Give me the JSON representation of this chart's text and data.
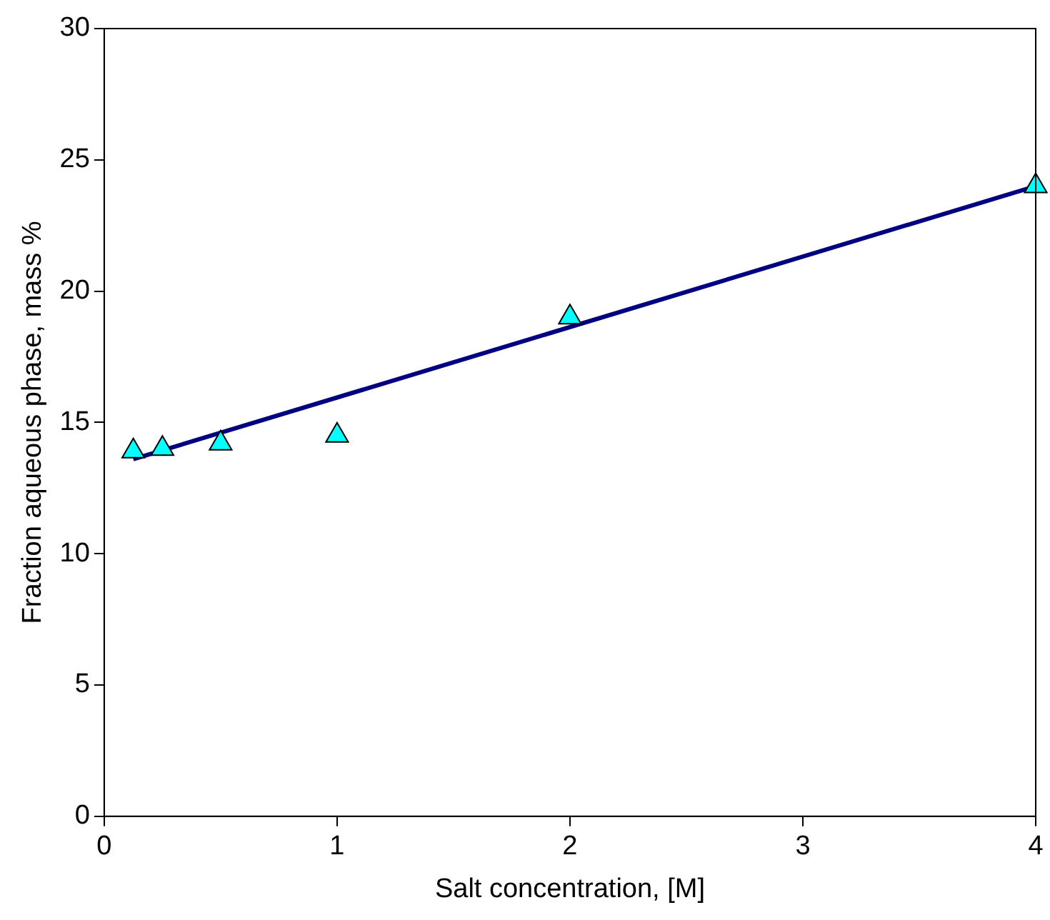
{
  "chart_data": {
    "type": "scatter",
    "xlabel": "Salt concentration, [M]",
    "ylabel": "Fraction aqueous phase, mass %",
    "series": [
      {
        "color": "#00ffff",
        "x": [
          0.125,
          0.25,
          0.5,
          1,
          2,
          4
        ],
        "values": [
          13.9,
          14.0,
          14.2,
          14.5,
          19.0,
          24.0
        ],
        "marker": "triangle"
      },
      {
        "type": "line",
        "color": "#000080",
        "x": [
          0.125,
          4
        ],
        "values": [
          13.6,
          24.0
        ],
        "marker": "none",
        "line_style": "solid"
      }
    ],
    "xlim": [
      0,
      4
    ],
    "xticks": [
      0,
      1,
      2,
      3,
      4
    ],
    "ylim": [
      0,
      30
    ],
    "yticks": [
      0,
      5,
      10,
      15,
      20,
      25,
      30
    ],
    "grid": false,
    "legend": false
  }
}
